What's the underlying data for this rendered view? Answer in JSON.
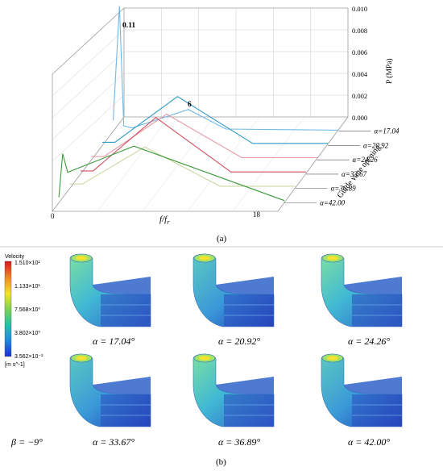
{
  "panel_a": {
    "label": "(a)",
    "xlabel_f": "f",
    "xlabel_sep": "/",
    "xlabel_fr": "f",
    "xlabel_sub": "r",
    "x_tick_0": "0",
    "x_tick_18": "18",
    "zlabel": "P (MPa)",
    "z_ticks": [
      "0.010",
      "0.008",
      "0.006",
      "0.004",
      "0.002",
      "0.000"
    ],
    "depth_axis_label": "Guide vane opening",
    "peak_label_1": "0.11",
    "peak_label_2": "6"
  },
  "panel_b": {
    "label": "(b)",
    "beta_label": "β = −9°",
    "colorbar": {
      "title": "Velocity",
      "ticks": [
        "1.510×10¹",
        "1.133×10¹",
        "7.568×10⁰",
        "3.802×10⁰",
        "3.562×10⁻²"
      ],
      "unit": "[m s^-1]",
      "colors": [
        "#d7191c",
        "#f28c28",
        "#f4e22f",
        "#7fd34e",
        "#27c2a3",
        "#1f8fe0",
        "#1a2fd1"
      ]
    },
    "cases": [
      {
        "label": "α = 17.04°"
      },
      {
        "label": "α = 20.92°"
      },
      {
        "label": "α = 24.26°"
      },
      {
        "label": "α = 33.67°"
      },
      {
        "label": "α = 36.89°"
      },
      {
        "label": "α = 42.00°"
      }
    ]
  },
  "chart_data": {
    "type": "line",
    "xlabel": "f/fr",
    "ylabel": "P (MPa)",
    "xlim": [
      0,
      18
    ],
    "zlim": [
      0,
      0.01
    ],
    "depth_label": "Guide vane opening",
    "series": [
      {
        "name": "α=17.04",
        "color": "#6fb9e6",
        "x": [
          0,
          0.5,
          0.85,
          1.5,
          6,
          9,
          18
        ],
        "values": [
          0.001,
          0.012,
          0.0005,
          0.0003,
          0.002,
          0.0002,
          0.0001
        ]
      },
      {
        "name": "α=20.92",
        "color": "#2f9ac4",
        "x": [
          0,
          1,
          6,
          12,
          18
        ],
        "values": [
          0.0003,
          0.0003,
          0.0045,
          0.0002,
          0.0002
        ]
      },
      {
        "name": "α=24.26",
        "color": "#e59aa4",
        "x": [
          0,
          1,
          6,
          12,
          18
        ],
        "values": [
          0.0003,
          0.0003,
          0.0042,
          0.0002,
          0.0002
        ]
      },
      {
        "name": "α=33.67",
        "color": "#d24f60",
        "x": [
          0,
          1,
          6,
          12,
          18
        ],
        "values": [
          0.0003,
          0.0003,
          0.0052,
          0.0002,
          0.0002
        ]
      },
      {
        "name": "α=36.89",
        "color": "#c7d9a3",
        "x": [
          0,
          1,
          6,
          12,
          18
        ],
        "values": [
          0.0004,
          0.0004,
          0.0038,
          0.0002,
          0.0002
        ]
      },
      {
        "name": "α=42.00",
        "color": "#3c9a3c",
        "x": [
          0,
          0.3,
          0.7,
          6,
          18
        ],
        "values": [
          0.0005,
          0.0045,
          0.0028,
          0.0052,
          0.0002
        ]
      }
    ]
  }
}
